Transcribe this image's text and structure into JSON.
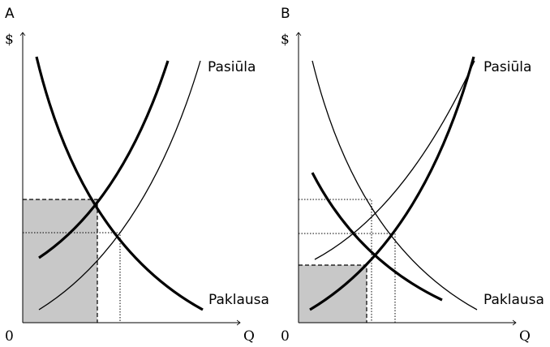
{
  "panels": [
    {
      "label": "A",
      "y_axis": "$",
      "origin": "0",
      "x_axis": "Q",
      "supply": "Pasiūla",
      "demand": "Paklausa"
    },
    {
      "label": "B",
      "y_axis": "$",
      "origin": "0",
      "x_axis": "Q",
      "supply": "Pasiūla",
      "demand": "Paklausa"
    }
  ]
}
